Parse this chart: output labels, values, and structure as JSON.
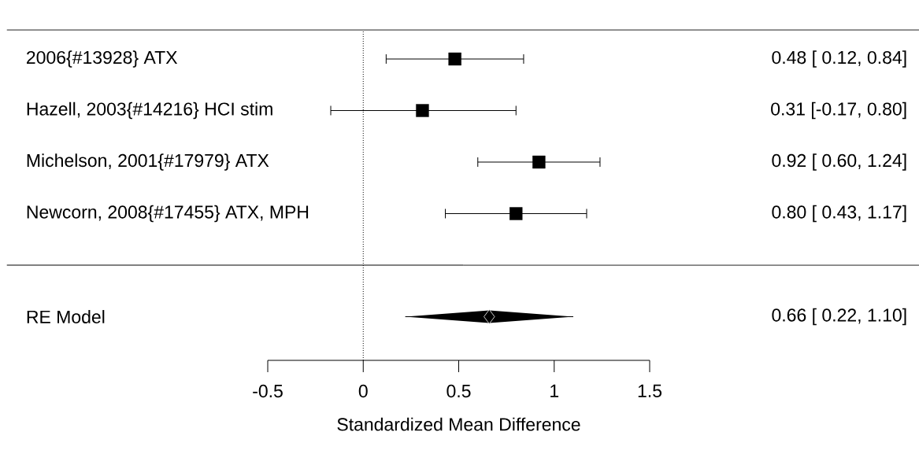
{
  "chart_data": {
    "type": "scatter",
    "orientation": "horizontal",
    "categories": [
      "2006{#13928} ATX",
      "Hazell, 2003{#14216} HCI stim",
      "Michelson, 2001{#17979} ATX",
      "Newcorn, 2008{#17455} ATX, MPH",
      "RE Model"
    ],
    "xlabel": "Standardized Mean Difference",
    "xlim": [
      -0.5,
      1.5
    ],
    "xticks": [
      -0.5,
      0,
      0.5,
      1,
      1.5
    ],
    "ref_lines": [
      {
        "axis": "x",
        "value": 0,
        "line_style": "dotted"
      }
    ],
    "series": [
      {
        "color": "#000000",
        "marker": [
          "square",
          "square",
          "square",
          "square",
          "diamond"
        ],
        "values": [
          0.48,
          0.31,
          0.92,
          0.8,
          0.66
        ],
        "errors": [
          [
            0.12,
            0.84
          ],
          [
            -0.17,
            0.8
          ],
          [
            0.6,
            1.24
          ],
          [
            0.43,
            1.17
          ],
          [
            0.22,
            1.1
          ]
        ],
        "value_labels": [
          "0.48 [ 0.12, 0.84]",
          "0.31 [-0.17, 0.80]",
          "0.92 [ 0.60, 1.24]",
          "0.80 [ 0.43, 1.17]",
          "0.66 [ 0.22, 1.10]"
        ]
      }
    ]
  }
}
